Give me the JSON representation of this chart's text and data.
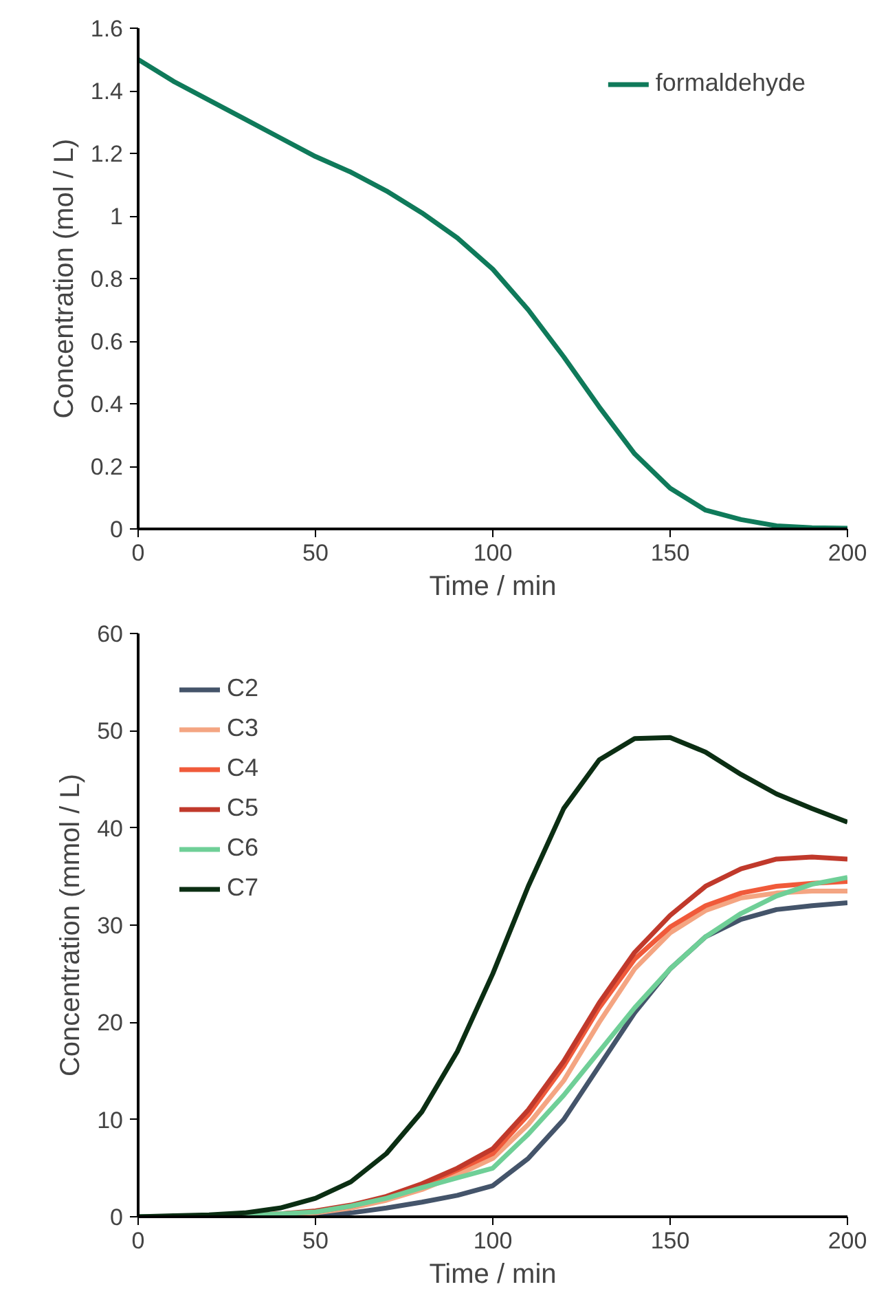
{
  "chart_data": [
    {
      "type": "line",
      "xlabel": "Time / min",
      "ylabel": "Concentration (mol / L)",
      "x": [
        0,
        10,
        20,
        30,
        40,
        50,
        60,
        70,
        80,
        90,
        100,
        110,
        120,
        130,
        140,
        150,
        160,
        170,
        180,
        190,
        200
      ],
      "xlim": [
        0,
        200
      ],
      "xticks": [
        0,
        50,
        100,
        150,
        200
      ],
      "ylim": [
        0,
        1.6
      ],
      "yticks": [
        0,
        0.2,
        0.4,
        0.6,
        0.8,
        1,
        1.2,
        1.4,
        1.6
      ],
      "grid": false,
      "legend": "top right",
      "series": [
        {
          "name": "formaldehyde",
          "color": "#0f7a5a",
          "values": [
            1.5,
            1.43,
            1.37,
            1.31,
            1.25,
            1.19,
            1.14,
            1.08,
            1.01,
            0.93,
            0.83,
            0.7,
            0.55,
            0.39,
            0.24,
            0.13,
            0.06,
            0.03,
            0.01,
            0.004,
            0.002
          ]
        }
      ]
    },
    {
      "type": "line",
      "xlabel": "Time / min",
      "ylabel": "Concentration (mmol / L)",
      "x": [
        0,
        10,
        20,
        30,
        40,
        50,
        60,
        70,
        80,
        90,
        100,
        110,
        120,
        130,
        140,
        150,
        160,
        170,
        180,
        190,
        200
      ],
      "xlim": [
        0,
        200
      ],
      "xticks": [
        0,
        50,
        100,
        150,
        200
      ],
      "ylim": [
        0,
        60
      ],
      "yticks": [
        0,
        10,
        20,
        30,
        40,
        50,
        60
      ],
      "grid": false,
      "legend": "top left",
      "series": [
        {
          "name": "C2",
          "color": "#44546a",
          "values": [
            0,
            0,
            0,
            0,
            0.1,
            0.2,
            0.4,
            0.9,
            1.5,
            2.2,
            3.2,
            6,
            10,
            15.5,
            21,
            25.5,
            28.8,
            30.6,
            31.6,
            32,
            32.3
          ]
        },
        {
          "name": "C3",
          "color": "#f4a582",
          "values": [
            null,
            null,
            null,
            0.1,
            0.2,
            0.4,
            0.9,
            1.7,
            2.8,
            4.3,
            6,
            9.5,
            14,
            20,
            25.5,
            29.2,
            31.5,
            32.8,
            33.3,
            33.5,
            33.5
          ]
        },
        {
          "name": "C4",
          "color": "#f05a3a",
          "values": [
            null,
            null,
            null,
            0.1,
            0.3,
            0.5,
            1.1,
            2,
            3.2,
            4.8,
            6.5,
            10.5,
            15.5,
            21.5,
            26.5,
            29.8,
            32,
            33.3,
            34,
            34.3,
            34.5
          ]
        },
        {
          "name": "C5",
          "color": "#c0392b",
          "values": [
            null,
            null,
            null,
            0.1,
            0.3,
            0.6,
            1.2,
            2.1,
            3.4,
            5,
            7,
            11,
            16,
            22,
            27.2,
            31,
            34,
            35.8,
            36.8,
            37,
            36.8
          ]
        },
        {
          "name": "C6",
          "color": "#6fcf97",
          "values": [
            0,
            0,
            0,
            0.1,
            0.3,
            0.5,
            1.1,
            1.9,
            3,
            4,
            5,
            8.5,
            12.5,
            17,
            21.5,
            25.5,
            28.8,
            31.2,
            33,
            34.2,
            34.9
          ]
        },
        {
          "name": "C7",
          "color": "#0b2e13",
          "values": [
            0,
            0.1,
            0.2,
            0.4,
            0.9,
            1.9,
            3.6,
            6.5,
            10.8,
            17,
            25,
            34,
            42,
            47,
            49.2,
            49.3,
            47.8,
            45.5,
            43.5,
            42,
            40.6
          ]
        }
      ]
    }
  ]
}
